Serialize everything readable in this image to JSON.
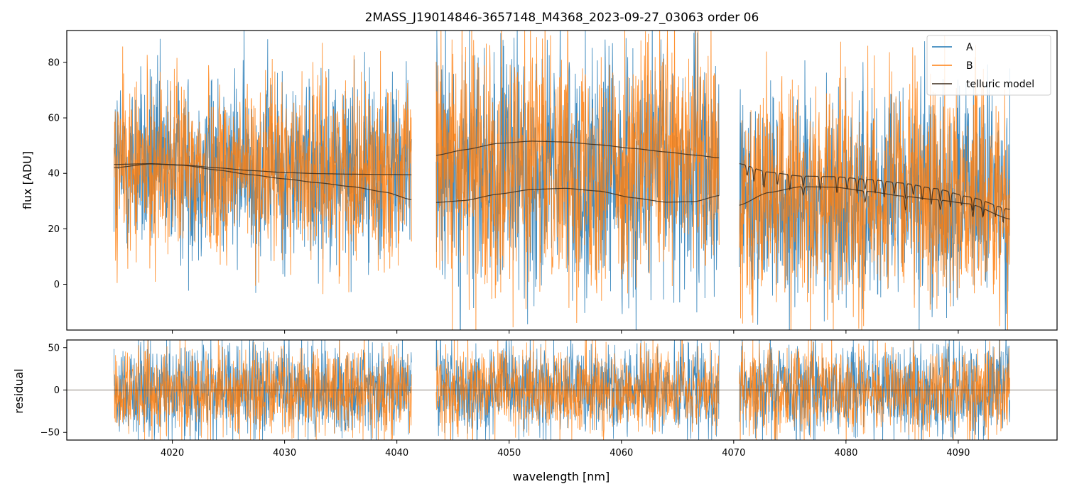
{
  "chart_data": {
    "type": "line",
    "title": "2MASS_J19014846-3657148_M4368_2023-09-27_03063  order 06",
    "xlabel": "wavelength [nm]",
    "xlim": [
      4010.6,
      4098.8
    ],
    "xticks": [
      4020,
      4030,
      4040,
      4050,
      4060,
      4070,
      4080,
      4090
    ],
    "legend": {
      "position": "upper-right",
      "entries": [
        "A",
        "B",
        "telluric model"
      ]
    },
    "colors": {
      "A": "#1f77b4",
      "B": "#ff7f0e",
      "telluric": "#3a2a1a"
    },
    "segments": [
      {
        "x_range": [
          4014.8,
          4041.3
        ]
      },
      {
        "x_range": [
          4043.5,
          4068.7
        ]
      },
      {
        "x_range": [
          4070.5,
          4094.6
        ]
      }
    ],
    "panels": [
      {
        "name": "flux",
        "ylabel": "flux [ADU]",
        "ylim": [
          -16.5,
          91.5
        ],
        "yticks": [
          0,
          20,
          40,
          60,
          80
        ],
        "series": [
          {
            "name": "A",
            "segments": [
              {
                "mean": 42,
                "spread": 17
              },
              {
                "mean": 40,
                "spread": 22
              },
              {
                "mean": 32,
                "spread": 20
              }
            ]
          },
          {
            "name": "B",
            "segments": [
              {
                "mean": 42,
                "spread": 16
              },
              {
                "mean": 44,
                "spread": 22
              },
              {
                "mean": 32,
                "spread": 20
              }
            ]
          },
          {
            "name": "telluric model",
            "curves": [
              {
                "x": [
                  4014.8,
                  4018,
                  4021,
                  4024,
                  4027,
                  4030,
                  4033,
                  4036,
                  4039,
                  4041.3
                ],
                "y": [
                  43.2,
                  43.5,
                  43.0,
                  42.0,
                  41.0,
                  40.3,
                  39.9,
                  39.7,
                  39.6,
                  39.5
                ]
              },
              {
                "x": [
                  4014.8,
                  4018,
                  4021,
                  4024,
                  4027,
                  4030,
                  4033,
                  4036,
                  4039,
                  4041.3
                ],
                "y": [
                  42.0,
                  43.4,
                  42.9,
                  41.2,
                  39.5,
                  38.0,
                  36.6,
                  35.2,
                  33.2,
                  30.5
                ]
              },
              {
                "x": [
                  4043.5,
                  4046,
                  4049,
                  4052,
                  4055,
                  4058,
                  4061,
                  4064,
                  4066.5,
                  4068.7
                ],
                "y": [
                  46.5,
                  48.5,
                  50.8,
                  51.6,
                  51.3,
                  50.3,
                  49.0,
                  47.7,
                  46.6,
                  45.6
                ]
              },
              {
                "x": [
                  4043.5,
                  4046,
                  4049,
                  4052,
                  4055,
                  4058,
                  4061,
                  4064,
                  4066.5,
                  4068.7
                ],
                "y": [
                  29.5,
                  30.2,
                  32.5,
                  34.2,
                  34.6,
                  33.6,
                  31.2,
                  29.6,
                  29.8,
                  32.0
                ]
              },
              {
                "x": [
                  4070.5,
                  4073,
                  4076,
                  4079,
                  4082,
                  4085,
                  4088,
                  4091,
                  4094.6
                ],
                "y": [
                  43.5,
                  40.5,
                  39.0,
                  38.8,
                  37.8,
                  36.5,
                  34.5,
                  31.5,
                  27.0
                ],
                "dips": [
                  4071.2,
                  4071.8,
                  4072.7,
                  4073.9,
                  4075.0,
                  4076.2,
                  4077.7,
                  4079.2,
                  4080.1,
                  4081.0,
                  4081.7,
                  4082.6,
                  4083.4,
                  4084.3,
                  4085.3,
                  4086.0,
                  4086.8,
                  4087.6,
                  4088.4,
                  4089.3,
                  4090.3,
                  4091.3,
                  4092.2,
                  4093.3,
                  4094.0
                ],
                "dip_depth": 6
              },
              {
                "x": [
                  4070.5,
                  4073,
                  4076,
                  4079,
                  4082,
                  4085,
                  4088,
                  4091,
                  4094.6
                ],
                "y": [
                  28.5,
                  33.0,
                  35.2,
                  35.0,
                  33.5,
                  31.8,
                  30.5,
                  29.0,
                  23.5
                ],
                "dips": [
                  4076.2,
                  4081.7,
                  4085.3,
                  4088.4,
                  4091.3,
                  4092.2
                ],
                "dip_depth": 5
              }
            ]
          }
        ]
      },
      {
        "name": "residual",
        "ylabel": "residual",
        "ylim": [
          -59,
          59
        ],
        "yticks": [
          -50,
          0,
          50
        ],
        "baseline": 0,
        "series": [
          {
            "name": "A",
            "spread": 28
          },
          {
            "name": "B",
            "spread": 26
          }
        ]
      }
    ]
  }
}
